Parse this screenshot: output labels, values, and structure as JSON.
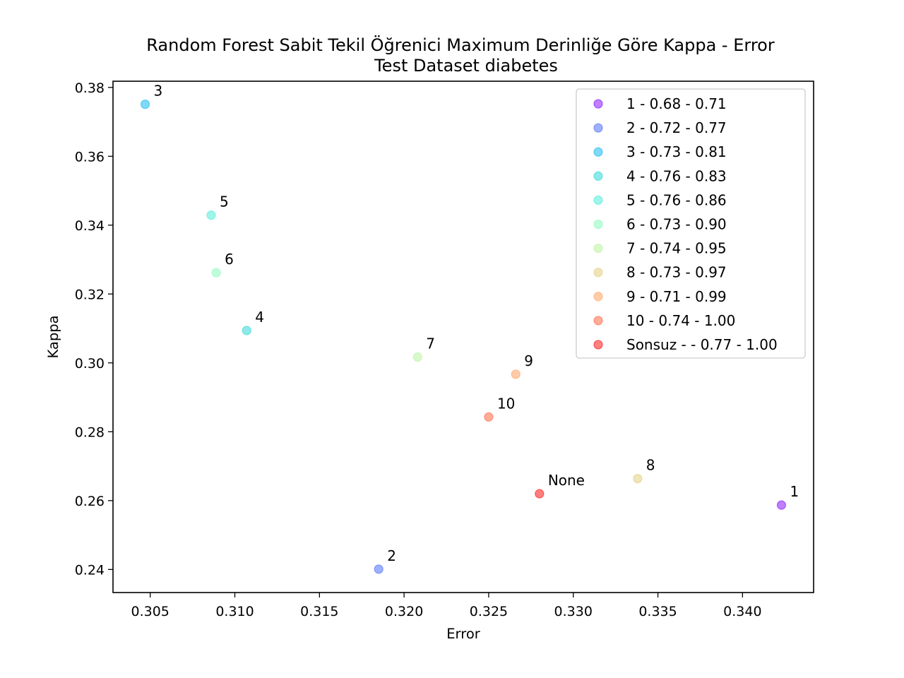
{
  "chart_data": {
    "type": "scatter",
    "title": "Random Forest Sabit Tekil Öğrenici Maximum Derinliğe Göre Kappa - Error",
    "subtitle": "Test Dataset  diabetes",
    "xlabel": "Error",
    "ylabel": "Kappa",
    "xlim": [
      0.3028,
      0.3442
    ],
    "ylim": [
      0.2333,
      0.3818
    ],
    "xticks": [
      "0.305",
      "0.310",
      "0.315",
      "0.320",
      "0.325",
      "0.330",
      "0.335",
      "0.340"
    ],
    "xtick_values": [
      0.305,
      0.31,
      0.315,
      0.32,
      0.325,
      0.33,
      0.335,
      0.34
    ],
    "yticks": [
      "0.24",
      "0.26",
      "0.28",
      "0.30",
      "0.32",
      "0.34",
      "0.36",
      "0.38"
    ],
    "ytick_values": [
      0.24,
      0.26,
      0.28,
      0.3,
      0.32,
      0.34,
      0.36,
      0.38
    ],
    "grid": false,
    "legend_position": "top-right",
    "points": [
      {
        "label": "1",
        "legend": "1 - 0.68 - 0.71",
        "x": 0.3423,
        "y": 0.2587,
        "color": "#8000ff"
      },
      {
        "label": "2",
        "legend": "2 - 0.72 - 0.77",
        "x": 0.3185,
        "y": 0.2401,
        "color": "#4062fa"
      },
      {
        "label": "3",
        "legend": "3 - 0.73 - 0.81",
        "x": 0.3047,
        "y": 0.3751,
        "color": "#00b5eb"
      },
      {
        "label": "4",
        "legend": "4 - 0.76 - 0.83",
        "x": 0.3107,
        "y": 0.3094,
        "color": "#1dd3d3"
      },
      {
        "label": "5",
        "legend": "5 - 0.76 - 0.86",
        "x": 0.3086,
        "y": 0.3429,
        "color": "#40ecd4"
      },
      {
        "label": "6",
        "legend": "6 - 0.73 - 0.90",
        "x": 0.3089,
        "y": 0.3262,
        "color": "#7ffbb8"
      },
      {
        "label": "7",
        "legend": "7 - 0.74 - 0.95",
        "x": 0.3208,
        "y": 0.3017,
        "color": "#b5f396"
      },
      {
        "label": "8",
        "legend": "8 - 0.73 - 0.97",
        "x": 0.3338,
        "y": 0.2664,
        "color": "#e0cc72"
      },
      {
        "label": "9",
        "legend": "9 - 0.71 - 0.99",
        "x": 0.3266,
        "y": 0.2967,
        "color": "#ff9a54"
      },
      {
        "label": "10",
        "legend": "10 - 0.74 - 1.00",
        "x": 0.325,
        "y": 0.2843,
        "color": "#ff5a35"
      },
      {
        "label": "None",
        "legend": "Sonsuz -  - 0.77 - 1.00",
        "x": 0.328,
        "y": 0.262,
        "color": "#ff0000"
      }
    ]
  }
}
